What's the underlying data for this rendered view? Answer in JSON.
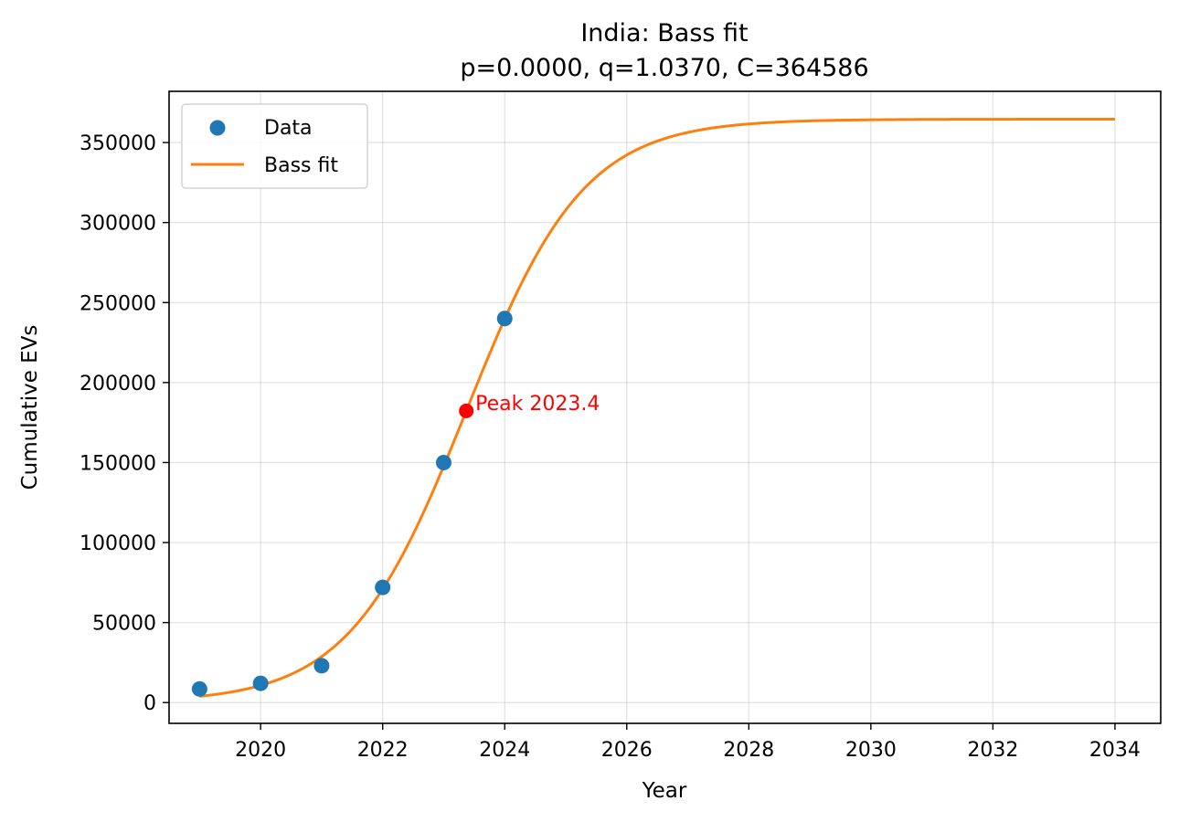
{
  "chart_data": {
    "type": "scatter",
    "title": "India: Bass fit",
    "subtitle": "p=0.0000, q=1.0370, C=364586",
    "xlabel": "Year",
    "ylabel": "Cumulative EVs",
    "xlim": [
      2018.5,
      2034.75
    ],
    "ylim": [
      -13000,
      382000
    ],
    "xticks": [
      2020,
      2022,
      2024,
      2026,
      2028,
      2030,
      2032,
      2034
    ],
    "yticks": [
      0,
      50000,
      100000,
      150000,
      200000,
      250000,
      300000,
      350000
    ],
    "grid": true,
    "legend_position": "upper-left",
    "series": [
      {
        "name": "Data",
        "kind": "scatter",
        "color": "#1f77b4",
        "x": [
          2019,
          2020,
          2021,
          2022,
          2023,
          2024
        ],
        "y": [
          8500,
          12000,
          23000,
          72000,
          150000,
          240000
        ]
      },
      {
        "name": "Bass fit",
        "kind": "line",
        "color": "#ff7f0e",
        "x_range": [
          2019,
          2034
        ],
        "p": 0.0,
        "q": 1.037,
        "C": 364586,
        "peak_year": 2023.37
      }
    ],
    "annotations": [
      {
        "text": "Peak 2023.4",
        "x": 2023.37,
        "y": 182293,
        "color": "#ff0000"
      }
    ]
  }
}
